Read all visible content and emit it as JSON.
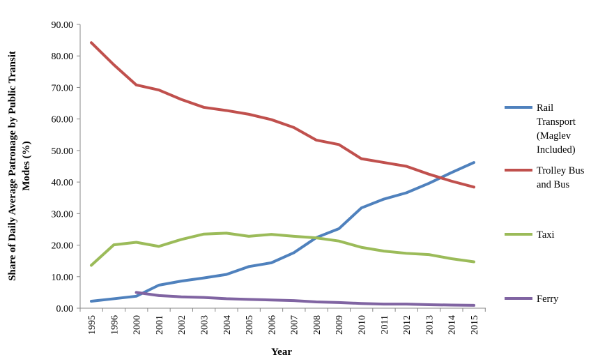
{
  "chart_data": {
    "type": "line",
    "xlabel": "Year",
    "ylabel": "Share of Daily Average Patronage by Public Transit Modes (%)",
    "ylim": [
      0,
      90
    ],
    "yticks": [
      "0.00",
      "10.00",
      "20.00",
      "30.00",
      "40.00",
      "50.00",
      "60.00",
      "70.00",
      "80.00",
      "90.00"
    ],
    "categories": [
      "1995",
      "1996",
      "2000",
      "2001",
      "2002",
      "2003",
      "2004",
      "2005",
      "2006",
      "2007",
      "2008",
      "2009",
      "2010",
      "2011",
      "2012",
      "2013",
      "2014",
      "2015"
    ],
    "grid": false,
    "legend_position": "right",
    "series": [
      {
        "name": "Rail Transport (Maglev Included)",
        "legend_lines": [
          "Rail",
          "Transport",
          "(Maglev",
          "Included)"
        ],
        "color": "#4f81bd",
        "values": [
          2.2,
          3.0,
          3.8,
          7.3,
          8.6,
          9.6,
          10.7,
          13.2,
          14.4,
          17.6,
          22.4,
          25.2,
          31.8,
          34.6,
          36.6,
          39.6,
          43.0,
          46.2
        ]
      },
      {
        "name": "Trolley Bus and Bus",
        "legend_lines": [
          "Trolley Bus",
          "and Bus"
        ],
        "color": "#c0504d",
        "values": [
          84.2,
          77.2,
          70.8,
          69.2,
          66.2,
          63.7,
          62.7,
          61.5,
          59.8,
          57.3,
          53.3,
          51.9,
          47.4,
          46.2,
          45.0,
          42.5,
          40.3,
          38.4
        ]
      },
      {
        "name": "Taxi",
        "legend_lines": [
          "Taxi"
        ],
        "color": "#9bbb59",
        "values": [
          13.6,
          20.1,
          20.9,
          19.6,
          21.8,
          23.5,
          23.8,
          22.8,
          23.4,
          22.8,
          22.3,
          21.3,
          19.3,
          18.1,
          17.4,
          17.0,
          15.7,
          14.7
        ]
      },
      {
        "name": "Ferry",
        "legend_lines": [
          "Ferry"
        ],
        "color": "#8064a2",
        "values": [
          null,
          null,
          5.0,
          4.0,
          3.6,
          3.4,
          3.0,
          2.8,
          2.6,
          2.4,
          2.0,
          1.8,
          1.5,
          1.3,
          1.3,
          1.1,
          1.0,
          0.9
        ]
      }
    ]
  }
}
